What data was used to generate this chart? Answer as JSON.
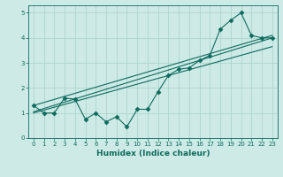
{
  "xlabel": "Humidex (Indice chaleur)",
  "bg_color": "#ceeae6",
  "grid_color": "#aed4ce",
  "line_color": "#0d6b5e",
  "xlim": [
    -0.5,
    23.5
  ],
  "ylim": [
    0,
    5.3
  ],
  "xticks": [
    0,
    1,
    2,
    3,
    4,
    5,
    6,
    7,
    8,
    9,
    10,
    11,
    12,
    13,
    14,
    15,
    16,
    17,
    18,
    19,
    20,
    21,
    22,
    23
  ],
  "yticks": [
    0,
    1,
    2,
    3,
    4,
    5
  ],
  "data_line1_x": [
    0,
    1,
    2,
    3,
    4,
    5,
    6,
    7,
    8,
    9,
    10,
    11,
    12,
    13,
    14,
    15,
    16,
    17,
    18,
    19,
    20,
    21,
    22,
    23
  ],
  "data_line1_y": [
    1.3,
    1.0,
    1.0,
    1.6,
    1.55,
    0.75,
    1.0,
    0.65,
    0.85,
    0.45,
    1.15,
    1.15,
    1.85,
    2.5,
    2.75,
    2.8,
    3.1,
    3.3,
    4.35,
    4.7,
    5.0,
    4.1,
    4.0,
    4.0
  ],
  "data_line2_x": [
    0,
    23
  ],
  "data_line2_y": [
    1.05,
    4.0
  ],
  "data_line3_x": [
    0,
    23
  ],
  "data_line3_y": [
    1.3,
    4.1
  ],
  "data_line4_x": [
    0,
    23
  ],
  "data_line4_y": [
    1.0,
    3.65
  ],
  "marker": "D",
  "markersize": 2.5,
  "linewidth": 0.8,
  "tick_fontsize": 5.0,
  "xlabel_fontsize": 6.5
}
